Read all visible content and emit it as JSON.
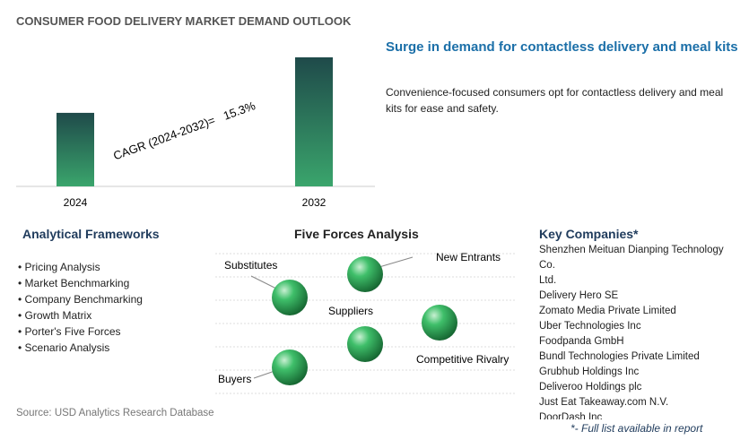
{
  "chart_data": {
    "type": "bar",
    "title": "CONSUMER FOOD DELIVERY MARKET DEMAND OUTLOOK",
    "categories": [
      "2024",
      "2032"
    ],
    "values": [
      57,
      100
    ],
    "colors": [
      "#1f4a4a",
      "#3aa56c"
    ],
    "annotation": "CAGR (2024-2032)=   15.3%"
  },
  "highlight": {
    "title": "Surge in demand for contactless delivery and meal kits",
    "text": "Convenience-focused consumers opt for contactless delivery and meal kits for ease and safety."
  },
  "frameworks": {
    "title": "Analytical Frameworks",
    "items": [
      "Pricing Analysis",
      "Market Benchmarking",
      "Company Benchmarking",
      "Growth Matrix",
      "Porter's Five Forces",
      "Scenario Analysis"
    ]
  },
  "five_forces": {
    "title": "Five Forces Analysis",
    "labels": [
      "Substitutes",
      "New Entrants",
      "Suppliers",
      "Competitive Rivalry",
      "Buyers"
    ]
  },
  "companies": {
    "title": "Key Companies*",
    "items": [
      "Shenzhen Meituan Dianping Technology Co.\nLtd.",
      "Delivery Hero SE",
      "Zomato Media Private Limited",
      "Uber Technologies Inc",
      "Foodpanda GmbH",
      "Bundl Technologies Private Limited",
      "Grubhub Holdings Inc",
      "Deliveroo Holdings plc",
      "Just Eat Takeaway.com N.V.",
      "DoorDash Inc"
    ],
    "note": "*- Full list available in report"
  },
  "source": "Source: USD Analytics Research Database"
}
